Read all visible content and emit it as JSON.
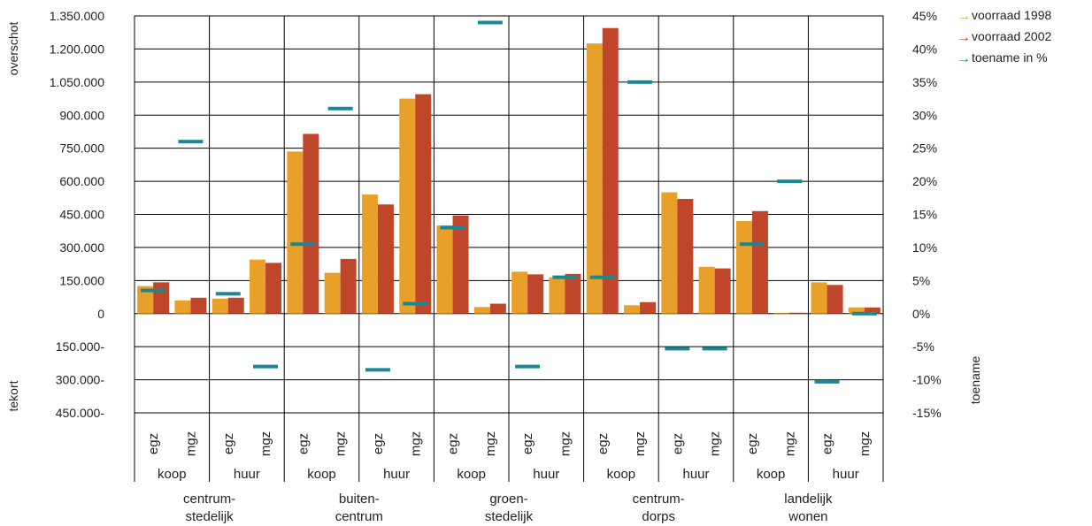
{
  "chart_data": {
    "type": "bar",
    "left_axis": {
      "ticks": [
        "1.350.000",
        "1.200.000",
        "1.050.000",
        "900.000",
        "750.000",
        "600.000",
        "450.000",
        "300.000",
        "150.000",
        "0",
        "150.000-",
        "300.000-",
        "450.000-"
      ],
      "range": [
        -450000,
        1350000
      ],
      "label_top": "overschot",
      "label_bottom": "tekort"
    },
    "right_axis": {
      "ticks": [
        "45%",
        "40%",
        "35%",
        "30%",
        "25%",
        "20%",
        "15%",
        "10%",
        "5%",
        "0%",
        "-5%",
        "-10%",
        "-15%"
      ],
      "range": [
        -15,
        45
      ],
      "label": "toename"
    },
    "series": [
      {
        "name": "voorraad 1998",
        "color": "#E8A02A",
        "values": [
          125000,
          60000,
          68000,
          245000,
          735000,
          185000,
          540000,
          975000,
          400000,
          30000,
          190000,
          165000,
          1225000,
          38000,
          550000,
          212000,
          420000,
          4000,
          142000,
          28000
        ]
      },
      {
        "name": "voorraad 2002",
        "color": "#C0462B",
        "values": [
          142000,
          72000,
          72000,
          230000,
          815000,
          248000,
          495000,
          995000,
          445000,
          45000,
          178000,
          180000,
          1295000,
          52000,
          520000,
          205000,
          465000,
          4000,
          130000,
          28000
        ]
      },
      {
        "name": "toename in %",
        "color": "#1A8894",
        "type": "marker",
        "values": [
          3.5,
          26,
          3,
          -8,
          10.5,
          31,
          -8.5,
          1.5,
          13,
          44,
          -8,
          5.5,
          5.5,
          35,
          -5.3,
          -5.3,
          10.5,
          20,
          -10.3,
          0
        ]
      }
    ],
    "bar_labels": [
      "egz",
      "mgz",
      "egz",
      "mgz",
      "egz",
      "mgz",
      "egz",
      "mgz",
      "egz",
      "mgz",
      "egz",
      "mgz",
      "egz",
      "mgz",
      "egz",
      "mgz",
      "egz",
      "mgz",
      "egz",
      "mgz"
    ],
    "sub_labels": [
      "koop",
      "huur",
      "koop",
      "huur",
      "koop",
      "huur",
      "koop",
      "huur",
      "koop",
      "huur"
    ],
    "groups": [
      {
        "line1": "centrum-",
        "line2": "stedelijk"
      },
      {
        "line1": "buiten-",
        "line2": "centrum"
      },
      {
        "line1": "groen-",
        "line2": "stedelijk"
      },
      {
        "line1": "centrum-",
        "line2": "dorps"
      },
      {
        "line1": "landelijk",
        "line2": "wonen"
      }
    ],
    "legend_placement": "top-right"
  }
}
